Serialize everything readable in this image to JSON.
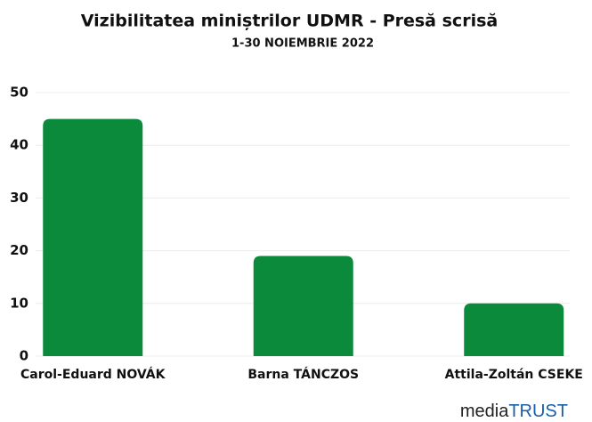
{
  "chart_data": {
    "type": "bar",
    "title": "Vizibilitatea miniștrilor UDMR - Presă scrisă",
    "subtitle": "1-30 NOIEMBRIE 2022",
    "categories": [
      "Carol-Eduard NOVÁK",
      "Barna TÁNCZOS",
      "Attila-Zoltán CSEKE"
    ],
    "values": [
      45,
      19,
      10
    ],
    "color": "#0c8a3c",
    "ylim": [
      0,
      50
    ],
    "yticks": [
      0,
      10,
      20,
      30,
      40,
      50
    ],
    "grid": true,
    "logo": {
      "first": "media",
      "second": "TRUST"
    }
  }
}
